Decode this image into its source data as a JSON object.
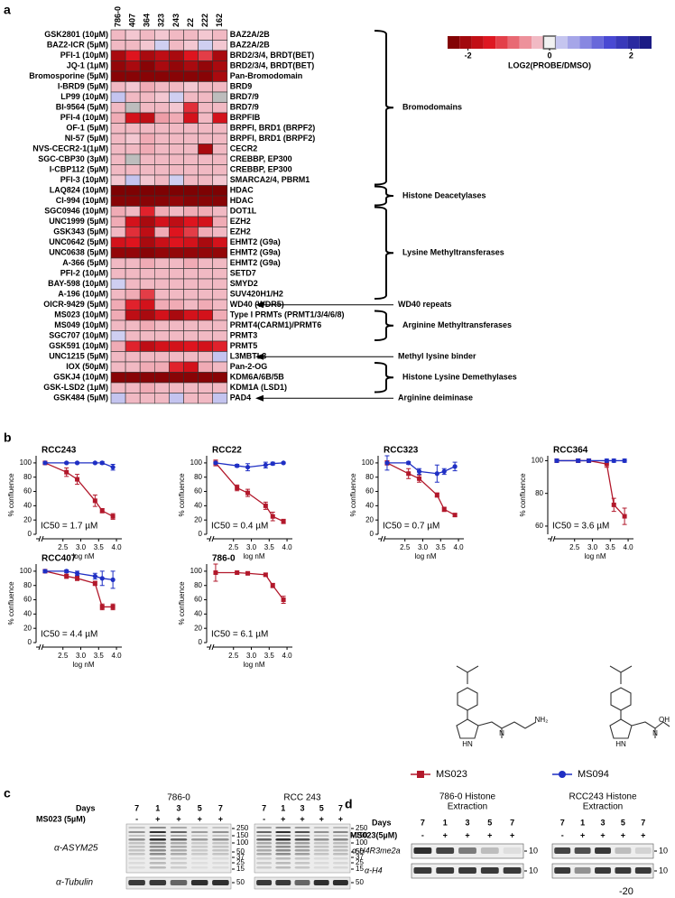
{
  "panel_a": {
    "label": "a",
    "columns": [
      "786-0",
      "407",
      "364",
      "323",
      "243",
      "22",
      "222",
      "162"
    ],
    "compounds": [
      "GSK2801 (10µM)",
      "BAZ2-ICR (5µM)",
      "PFI-1 (10µM)",
      "JQ-1 (1µM)",
      "Bromosporine (5µM)",
      "I-BRD9 (5µM)",
      "LP99 (10µM)",
      "BI-9564 (5µM)",
      "PFI-4 (10µM)",
      "OF-1 (5µM)",
      "NI-57 (5µM)",
      "NVS-CECR2-1(1µM)",
      "SGC-CBP30 (3µM)",
      "I-CBP112 (5µM)",
      "PFI-3 (10µM)",
      "LAQ824 (10µM)",
      "CI-994 (10µM)",
      "SGC0946 (10µM)",
      "UNC1999 (5µM)",
      "GSK343 (5µM)",
      "UNC0642 (5µM)",
      "UNC0638 (5µM)",
      "A-366 (5µM)",
      "PFI-2 (10µM)",
      "BAY-598 (10µM)",
      "A-196 (10µM)",
      "OICR-9429 (5µM)",
      "MS023 (10µM)",
      "MS049 (10µM)",
      "SGC707 (10µM)",
      "GSK591 (10µM)",
      "UNC1215 (5µM)",
      "IOX (50µM)",
      "GSKJ4 (10µM)",
      "GSK-LSD2 (1µM)",
      "GSK484 (5µM)"
    ],
    "targets": [
      "BAZ2A/2B",
      "BAZ2A/2B",
      "BRD2/3/4, BRDT(BET)",
      "BRD2/3/4, BRDT(BET)",
      "Pan-Bromodomain",
      "BRD9",
      "BRD7/9",
      "BRD7/9",
      "BRPFIB",
      "BRPFI, BRD1 (BRPF2)",
      "BRPFI, BRD1 (BRPF2)",
      "CECR2",
      "CREBBP, EP300",
      "CREBBP, EP300",
      "SMARCA2/4, PBRM1",
      "HDAC",
      "HDAC",
      "DOT1L",
      "EZH2",
      "EZH2",
      "EHMT2 (G9a)",
      "EHMT2 (G9a)",
      "EHMT2 (G9a)",
      "SETD7",
      "SMYD2",
      "SUV420H1/H2",
      "WD40 (WDR5)",
      "Type I PRMTs (PRMT1/3/4/6/8)",
      "PRMT4(CARM1)/PRMT6",
      "PRMT3",
      "PRMT5",
      "L3MBTL3",
      "Pan-2-OG",
      "KDM6A/6B/5B",
      "KDM1A (LSD1)",
      "PAD4"
    ],
    "values": [
      [
        -0.3,
        -0.2,
        -0.3,
        -0.2,
        -0.3,
        -0.3,
        -0.2,
        -0.3
      ],
      [
        -0.3,
        -0.3,
        -0.2,
        0.2,
        -0.3,
        -0.2,
        0.2,
        -0.2
      ],
      [
        -2,
        -1.5,
        -2,
        -1.8,
        -2,
        -1.5,
        -1.2,
        -2
      ],
      [
        -2.2,
        -2,
        -2.3,
        -2,
        -2.2,
        -2,
        -2.2,
        -2
      ],
      [
        -2.3,
        -2.3,
        -2.3,
        -2.3,
        -2.3,
        -2.3,
        -2.3,
        -2
      ],
      [
        -0.3,
        -0.2,
        -0.4,
        -0.3,
        -0.3,
        -0.2,
        -0.3,
        -0.3
      ],
      [
        0.3,
        -0.3,
        -0.3,
        -0.2,
        0.2,
        -0.3,
        -0.3,
        null
      ],
      [
        -0.3,
        null,
        -0.3,
        -0.3,
        -0.2,
        -1.3,
        -0.3,
        -0.3
      ],
      [
        -0.4,
        -1.6,
        -1.8,
        -0.5,
        -0.4,
        -1.6,
        -0.3,
        -1.6
      ],
      [
        -0.3,
        -0.3,
        -0.3,
        -0.3,
        -0.3,
        -0.3,
        -0.3,
        -0.3
      ],
      [
        -0.3,
        -0.2,
        -0.4,
        -0.3,
        -0.3,
        -0.3,
        -0.3,
        -0.3
      ],
      [
        -0.3,
        -0.3,
        -0.4,
        -0.3,
        -0.3,
        -0.3,
        -2,
        -0.3
      ],
      [
        -0.3,
        null,
        -0.3,
        -0.3,
        -0.3,
        -0.3,
        -0.3,
        -0.3
      ],
      [
        -0.3,
        -0.3,
        -0.3,
        -0.3,
        -0.3,
        -0.3,
        -0.3,
        -0.3
      ],
      [
        -0.2,
        0.3,
        -0.2,
        -0.3,
        0.2,
        -0.3,
        -0.3,
        -0.2
      ],
      [
        -2.4,
        -2.4,
        -2.4,
        -2.4,
        -2.4,
        -2.4,
        -2.4,
        -2.4
      ],
      [
        -2.3,
        -2.3,
        -2.3,
        -2.3,
        -2.2,
        -2.3,
        -2.3,
        -2.3
      ],
      [
        -0.4,
        -0.3,
        -1.4,
        -0.4,
        -0.3,
        -0.4,
        -0.4,
        -0.3
      ],
      [
        -0.4,
        -1.6,
        -2,
        -1.6,
        -1.8,
        -1.5,
        -1.6,
        -0.4
      ],
      [
        -0.3,
        -1.3,
        -1.8,
        -0.4,
        -1.5,
        -1.2,
        -0.4,
        -0.3
      ],
      [
        -1.6,
        -1.5,
        -2,
        -1.7,
        -1.5,
        -1.6,
        -2,
        -1.6
      ],
      [
        -2.2,
        -2.2,
        -2.3,
        -2.2,
        -2.2,
        -2.2,
        -2.2,
        -2.2
      ],
      [
        -0.3,
        -0.3,
        -0.4,
        -0.3,
        -0.3,
        -0.4,
        -0.3,
        -0.3
      ],
      [
        -0.3,
        -0.3,
        -0.3,
        -0.3,
        -0.3,
        -0.3,
        -0.3,
        -0.3
      ],
      [
        0.2,
        -0.3,
        -0.3,
        -0.3,
        -0.3,
        -0.3,
        -0.3,
        -0.3
      ],
      [
        -0.3,
        -0.4,
        -1.2,
        -0.3,
        -0.3,
        -0.3,
        -0.3,
        -0.3
      ],
      [
        -0.4,
        -1.4,
        -1.6,
        -0.4,
        -0.4,
        -0.3,
        -0.4,
        -0.3
      ],
      [
        -0.4,
        -1.8,
        -2,
        -1.6,
        -2,
        -1.6,
        -1.6,
        -0.4
      ],
      [
        -0.3,
        -0.3,
        -0.4,
        -0.3,
        -0.3,
        -0.3,
        -0.3,
        -0.3
      ],
      [
        0.2,
        -0.3,
        -0.3,
        -0.3,
        -0.3,
        -0.3,
        -0.3,
        -0.3
      ],
      [
        -0.4,
        -1.4,
        -1.8,
        -1.6,
        -1.6,
        -1.5,
        -1.6,
        -1.4
      ],
      [
        -0.3,
        -0.3,
        -0.3,
        -0.3,
        -0.3,
        -0.3,
        -0.3,
        0.3
      ],
      [
        -0.3,
        -0.3,
        -0.4,
        -0.4,
        -1.4,
        -1.6,
        -0.4,
        -0.3
      ],
      [
        -2.3,
        -2.3,
        -2.3,
        -2.3,
        -2.3,
        -2.3,
        -2.3,
        -2.3
      ],
      [
        -0.3,
        -0.3,
        -0.4,
        -0.3,
        -0.3,
        -0.3,
        -0.3,
        -0.3
      ],
      [
        0.3,
        -0.3,
        -0.3,
        -0.3,
        0.3,
        -0.3,
        -0.3,
        0.3
      ]
    ],
    "colorbar": {
      "lim": [
        -2.5,
        2.5
      ],
      "ticks": [
        -2,
        0,
        2
      ],
      "label": "LOG2(PROBE/DMSO)"
    },
    "groups": [
      {
        "label": "Bromodomains",
        "kind": "bracket",
        "start": 0,
        "end": 14
      },
      {
        "label": "Histone Deacetylases",
        "kind": "bracket",
        "start": 15,
        "end": 16
      },
      {
        "label": "Lysine Methyltransferases",
        "kind": "bracket",
        "start": 17,
        "end": 25
      },
      {
        "label": "WD40 repeats",
        "kind": "arrow",
        "start": 26,
        "end": 26
      },
      {
        "label": "Arginine Methyltransferases",
        "kind": "bracket",
        "start": 27,
        "end": 29
      },
      {
        "label": "Methyl lysine binder",
        "kind": "arrow",
        "start": 31,
        "end": 31
      },
      {
        "label": "Histone Lysine Demethylases",
        "kind": "bracket",
        "start": 32,
        "end": 34
      },
      {
        "label": "Arginine deiminase",
        "kind": "arrow",
        "start": 35,
        "end": 35
      }
    ]
  },
  "panel_b": {
    "label": "b",
    "ylabel": "% confluence",
    "xlabel": "log nM",
    "xlim": [
      1.9,
      4.15
    ],
    "xticks": [
      2.5,
      {
        "value": 3,
        "label": "3.0"
      },
      3.5,
      {
        "value": 4,
        "label": "4.0"
      }
    ],
    "x": [
      2.0,
      2.6,
      2.9,
      3.4,
      3.6,
      3.9
    ],
    "plots": [
      {
        "title": "RCC243",
        "ic50": "IC50 = 1.7 µM",
        "ylim": [
          0,
          110
        ],
        "yticks": [
          0,
          20,
          40,
          60,
          80,
          100
        ],
        "series": [
          {
            "name": "MS023",
            "color": "#b2182b",
            "values": [
              100,
              87,
              77,
              47,
              33,
              25
            ],
            "errors": [
              2,
              6,
              7,
              8,
              3,
              4
            ]
          },
          {
            "name": "MS094",
            "color": "#1f2fc4",
            "values": [
              100,
              100,
              100,
              100,
              100,
              94
            ],
            "errors": [
              1,
              1,
              1,
              1,
              2,
              4
            ]
          }
        ]
      },
      {
        "title": "RCC22",
        "ic50": "IC50 = 0.4 µM",
        "ylim": [
          0,
          110
        ],
        "yticks": [
          0,
          20,
          40,
          60,
          80,
          100
        ],
        "series": [
          {
            "name": "MS023",
            "color": "#b2182b",
            "values": [
              100,
              65,
              58,
              40,
              25,
              18
            ],
            "errors": [
              4,
              4,
              5,
              5,
              6,
              3
            ]
          },
          {
            "name": "MS094",
            "color": "#1f2fc4",
            "values": [
              100,
              96,
              94,
              97,
              99,
              100
            ],
            "errors": [
              1,
              2,
              5,
              4,
              2,
              1
            ]
          }
        ]
      },
      {
        "title": "RCC323",
        "ic50": "IC50 = 0.7 µM",
        "ylim": [
          0,
          110
        ],
        "yticks": [
          0,
          20,
          40,
          60,
          80,
          100
        ],
        "series": [
          {
            "name": "MS023",
            "color": "#b2182b",
            "values": [
              100,
              85,
              78,
              55,
              35,
              27
            ],
            "errors": [
              3,
              7,
              5,
              3,
              3,
              2
            ]
          },
          {
            "name": "MS094",
            "color": "#1f2fc4",
            "values": [
              100,
              100,
              88,
              85,
              88,
              95
            ],
            "errors": [
              10,
              2,
              4,
              12,
              4,
              6
            ]
          }
        ]
      },
      {
        "title": "RCC364",
        "ic50": "IC50 = 3.6 µM",
        "ylim": [
          55,
          103
        ],
        "yticks": [
          60,
          80,
          100
        ],
        "series": [
          {
            "name": "MS023",
            "color": "#b2182b",
            "values": [
              100,
              100,
              100,
              98,
              73,
              66
            ],
            "errors": [
              1,
              1,
              1,
              2,
              4,
              5
            ]
          },
          {
            "name": "MS094",
            "color": "#1f2fc4",
            "values": [
              100,
              100,
              100,
              100,
              100,
              100
            ],
            "errors": [
              1,
              1,
              1,
              1,
              1,
              1
            ]
          }
        ]
      },
      {
        "title": "RCC407",
        "ic50": "IC50 = 4.4 µM",
        "ylim": [
          0,
          110
        ],
        "yticks": [
          0,
          20,
          40,
          60,
          80,
          100
        ],
        "series": [
          {
            "name": "MS023",
            "color": "#b2182b",
            "values": [
              100,
              93,
              90,
              83,
              50,
              50
            ],
            "errors": [
              2,
              3,
              3,
              3,
              4,
              4
            ]
          },
          {
            "name": "MS094",
            "color": "#1f2fc4",
            "values": [
              100,
              100,
              97,
              93,
              90,
              88
            ],
            "errors": [
              2,
              2,
              3,
              4,
              10,
              12
            ]
          }
        ]
      },
      {
        "title": "786-0",
        "ic50": "IC50 = 6.1 µM",
        "ylim": [
          0,
          110
        ],
        "yticks": [
          0,
          20,
          40,
          60,
          80,
          100
        ],
        "series": [
          {
            "name": "MS023",
            "color": "#b2182b",
            "values": [
              98,
              98,
              97,
              95,
              80,
              60
            ],
            "errors": [
              12,
              2,
              2,
              2,
              3,
              5
            ]
          }
        ]
      }
    ],
    "structures": [
      {
        "atoms": [
          "N",
          "NH₂",
          "HN"
        ]
      },
      {
        "atoms": [
          "N",
          "OH",
          "HN"
        ]
      }
    ]
  },
  "panel_c": {
    "label": "c",
    "days_label": "Days",
    "treatment_label": "MS023 (5µM)",
    "antibodies": [
      "α-ASYM25",
      "α-Tubulin"
    ],
    "blots": [
      {
        "title": "786-0",
        "days": [
          7,
          1,
          3,
          5,
          7
        ],
        "treatment": [
          "-",
          "+",
          "+",
          "+",
          "+"
        ],
        "markers": [
          250,
          150,
          100,
          50,
          37,
          25,
          15
        ],
        "loading_marker": 50
      },
      {
        "title": "RCC 243",
        "days": [
          7,
          1,
          3,
          5,
          7
        ],
        "treatment": [
          "-",
          "+",
          "+",
          "+",
          "+"
        ],
        "markers": [
          250,
          150,
          100,
          50,
          37,
          25,
          15
        ],
        "loading_marker": 50
      }
    ]
  },
  "panel_d": {
    "label": "d",
    "days_label": "Days",
    "treatment_label": "MS023(5µM)",
    "antibodies": [
      "α-H4R3me2a",
      "α-H4"
    ],
    "blots": [
      {
        "title": [
          "786-0 Histone",
          "Extraction"
        ],
        "days": [
          7,
          1,
          3,
          5,
          7
        ],
        "treatment": [
          "-",
          "+",
          "+",
          "+",
          "+"
        ],
        "markers": [
          10,
          10
        ]
      },
      {
        "title": [
          "RCC243 Histone",
          "Extraction"
        ],
        "days": [
          7,
          1,
          3,
          5,
          7
        ],
        "treatment": [
          "-",
          "+",
          "+",
          "+",
          "+"
        ],
        "markers": [
          10,
          10
        ]
      }
    ],
    "footer": "-20"
  }
}
